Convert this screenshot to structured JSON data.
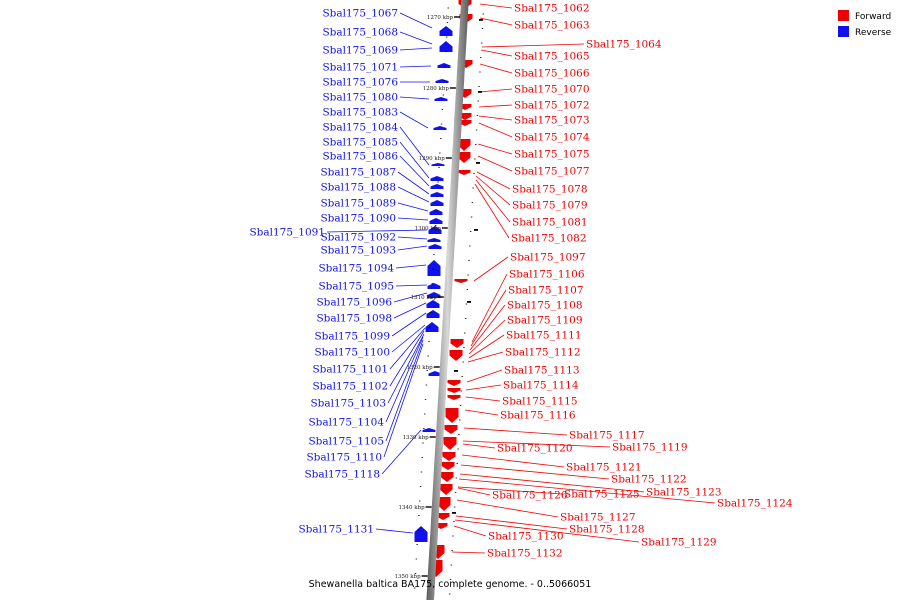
{
  "caption": "Shewanella baltica BA175, complete genome. - 0..5066051",
  "colors": {
    "forward": "#ee0000",
    "reverse": "#1111ee",
    "backbone": "#9a9a9a"
  },
  "legend": [
    {
      "label": "Forward",
      "color": "#ee0000"
    },
    {
      "label": "Reverse",
      "color": "#1111ee"
    }
  ],
  "ticks": [
    "1270 kbp",
    "1280 kbp",
    "1290 kbp",
    "1300 kbp",
    "1310 kbp",
    "1320 kbp",
    "1330 kbp",
    "1340 kbp",
    "1350 kbp"
  ],
  "reverse_genes": [
    "Sbal175_1067",
    "Sbal175_1068",
    "Sbal175_1069",
    "Sbal175_1071",
    "Sbal175_1076",
    "Sbal175_1080",
    "Sbal175_1083",
    "Sbal175_1084",
    "Sbal175_1085",
    "Sbal175_1086",
    "Sbal175_1087",
    "Sbal175_1088",
    "Sbal175_1089",
    "Sbal175_1090",
    "Sbal175_1091",
    "Sbal175_1092",
    "Sbal175_1093",
    "Sbal175_1094",
    "Sbal175_1095",
    "Sbal175_1096",
    "Sbal175_1098",
    "Sbal175_1099",
    "Sbal175_1100",
    "Sbal175_1101",
    "Sbal175_1102",
    "Sbal175_1103",
    "Sbal175_1104",
    "Sbal175_1105",
    "Sbal175_1110",
    "Sbal175_1118",
    "Sbal175_1131"
  ],
  "forward_genes": [
    "Sbal175_1062",
    "Sbal175_1063",
    "Sbal175_1064",
    "Sbal175_1065",
    "Sbal175_1066",
    "Sbal175_1070",
    "Sbal175_1072",
    "Sbal175_1073",
    "Sbal175_1074",
    "Sbal175_1075",
    "Sbal175_1077",
    "Sbal175_1078",
    "Sbal175_1079",
    "Sbal175_1081",
    "Sbal175_1082",
    "Sbal175_1097",
    "Sbal175_1106",
    "Sbal175_1107",
    "Sbal175_1108",
    "Sbal175_1109",
    "Sbal175_1111",
    "Sbal175_1112",
    "Sbal175_1113",
    "Sbal175_1114",
    "Sbal175_1115",
    "Sbal175_1116",
    "Sbal175_1117",
    "Sbal175_1119",
    "Sbal175_1120",
    "Sbal175_1121",
    "Sbal175_1122",
    "Sbal175_1123",
    "Sbal175_1124",
    "Sbal175_1125",
    "Sbal175_1126",
    "Sbal175_1127",
    "Sbal175_1128",
    "Sbal175_1129",
    "Sbal175_1130",
    "Sbal175_1132"
  ]
}
